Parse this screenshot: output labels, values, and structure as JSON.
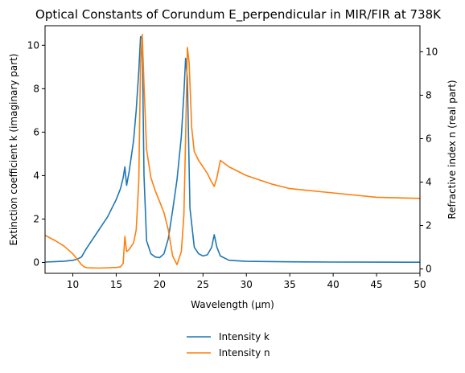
{
  "chart_data": {
    "type": "line",
    "title": "Optical Constants of Corundum E_perpendicular in MIR/FIR at 738K",
    "xlabel": "Wavelength (μm)",
    "ylabel_left": "Extinction coefficient k (imaginary part)",
    "ylabel_right": "Refractive index n (real part)",
    "xlim": [
      6.8,
      50
    ],
    "ylim_left": [
      -0.5,
      10.9
    ],
    "ylim_right": [
      -0.2,
      11.2
    ],
    "x_ticks": [
      10,
      15,
      20,
      25,
      30,
      35,
      40,
      45,
      50
    ],
    "y_ticks_left": [
      0,
      2,
      4,
      6,
      8,
      10
    ],
    "y_ticks_right": [
      0,
      2,
      4,
      6,
      8,
      10
    ],
    "grid": false,
    "legend_position": "bottom-center",
    "series": [
      {
        "name": "Intensity k",
        "axis": "left",
        "color": "#1f77b4",
        "x": [
          6.8,
          8,
          9,
          10,
          10.5,
          11,
          11.5,
          12,
          13,
          14,
          15,
          15.5,
          15.8,
          16.0,
          16.2,
          16.5,
          17.0,
          17.3,
          17.6,
          17.8,
          18.0,
          18.2,
          18.5,
          19.0,
          19.5,
          20.0,
          20.5,
          21.0,
          21.5,
          22.0,
          22.5,
          22.8,
          23.0,
          23.2,
          23.5,
          24.0,
          24.5,
          25.0,
          25.5,
          26.0,
          26.3,
          26.6,
          27.0,
          28,
          30,
          35,
          40,
          45,
          50
        ],
        "y": [
          0.02,
          0.04,
          0.06,
          0.1,
          0.15,
          0.25,
          0.6,
          0.9,
          1.5,
          2.1,
          2.9,
          3.4,
          3.9,
          4.4,
          3.55,
          4.2,
          5.6,
          7.0,
          8.8,
          10.4,
          10.3,
          4.0,
          1.0,
          0.4,
          0.25,
          0.22,
          0.4,
          1.1,
          2.4,
          3.8,
          5.8,
          7.8,
          9.4,
          8.5,
          2.5,
          0.7,
          0.4,
          0.3,
          0.35,
          0.7,
          1.28,
          0.7,
          0.3,
          0.1,
          0.05,
          0.03,
          0.02,
          0.015,
          0.01
        ]
      },
      {
        "name": "Intensity n",
        "axis": "right",
        "color": "#ff7f0e",
        "x": [
          6.8,
          8,
          9,
          10,
          10.5,
          11,
          11.3,
          11.6,
          12,
          13,
          14,
          15,
          15.5,
          15.8,
          16.0,
          16.2,
          16.5,
          17.0,
          17.3,
          17.6,
          17.8,
          18.0,
          18.2,
          18.5,
          19.0,
          19.5,
          20.0,
          20.5,
          21.0,
          21.5,
          22.0,
          22.5,
          22.8,
          23.0,
          23.2,
          23.4,
          23.7,
          24.0,
          24.5,
          25.0,
          25.5,
          26.0,
          26.3,
          26.6,
          27.0,
          28,
          30,
          33,
          35,
          40,
          45,
          50
        ],
        "y": [
          1.55,
          1.3,
          1.05,
          0.7,
          0.45,
          0.2,
          0.1,
          0.06,
          0.05,
          0.04,
          0.05,
          0.07,
          0.1,
          0.25,
          1.5,
          0.8,
          0.9,
          1.2,
          1.8,
          4.0,
          9.5,
          10.8,
          8.5,
          5.5,
          4.2,
          3.6,
          3.1,
          2.6,
          1.8,
          0.6,
          0.2,
          0.8,
          2.5,
          6.0,
          10.2,
          9.5,
          6.5,
          5.4,
          5.0,
          4.7,
          4.4,
          4.0,
          3.8,
          4.2,
          5.0,
          4.7,
          4.3,
          3.9,
          3.7,
          3.5,
          3.3,
          3.25
        ]
      }
    ]
  }
}
